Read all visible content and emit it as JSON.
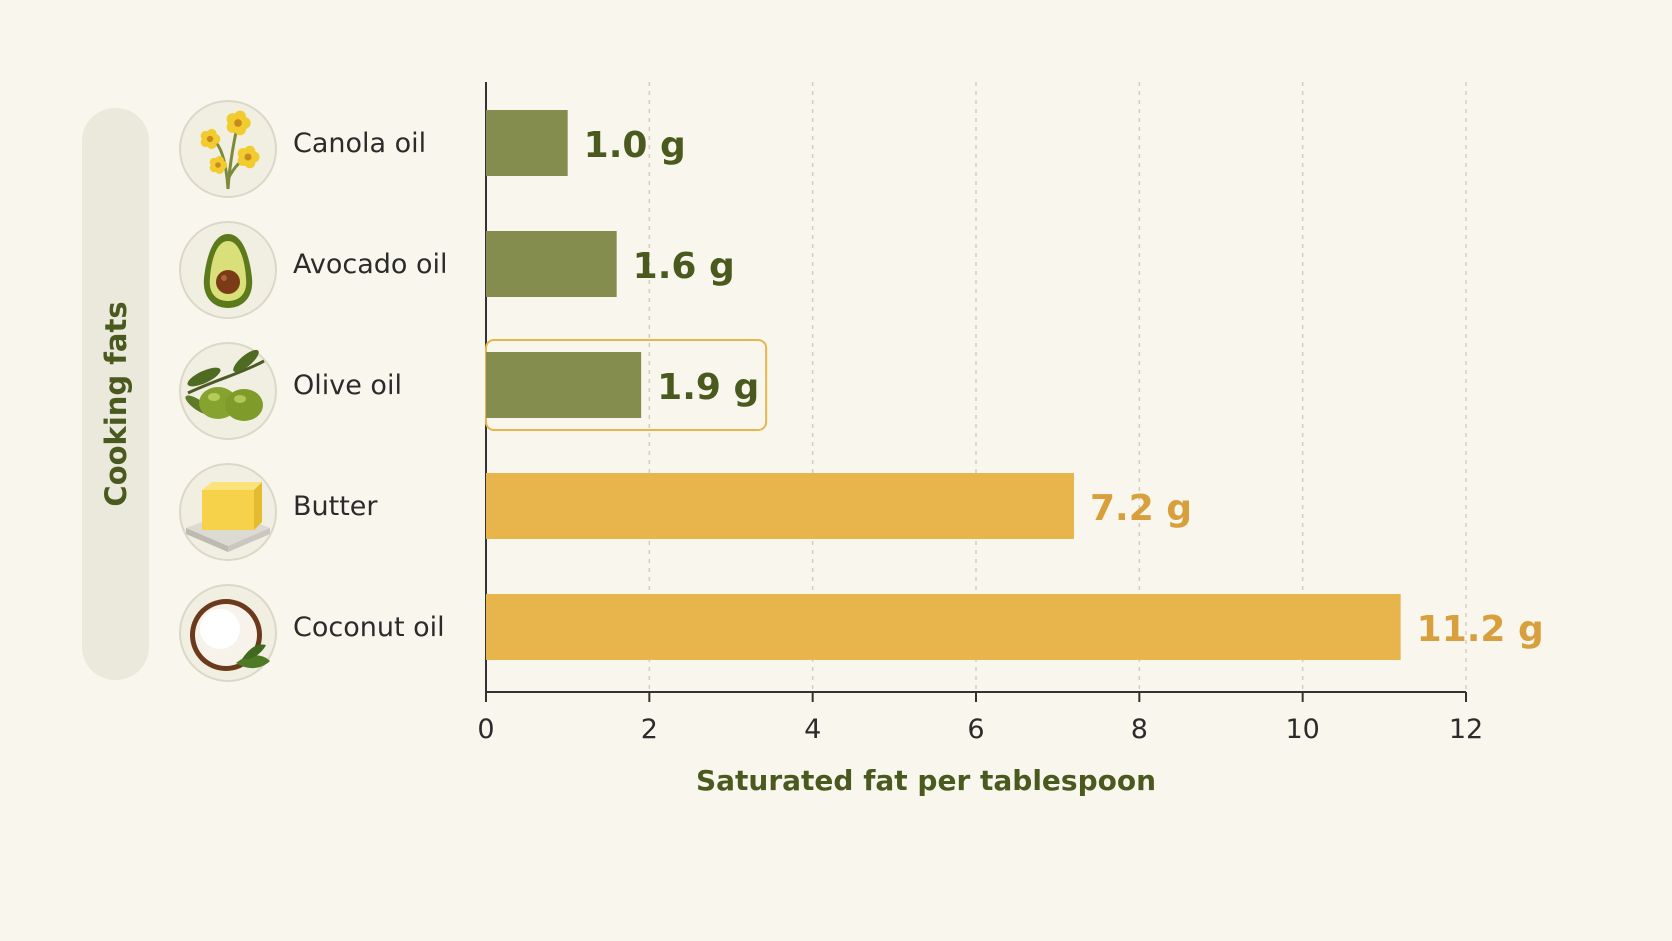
{
  "chart_data": {
    "type": "bar",
    "orientation": "horizontal",
    "ylabel": "Cooking fats",
    "xlabel": "Saturated fat per tablespoon",
    "xlim": [
      0,
      12
    ],
    "xticks": [
      0,
      2,
      4,
      6,
      8,
      10,
      12
    ],
    "grid": "vertical-dashed",
    "categories": [
      "Canola oil",
      "Avocado oil",
      "Olive oil",
      "Butter",
      "Coconut oil"
    ],
    "values": [
      1.0,
      1.6,
      1.9,
      7.2,
      11.2
    ],
    "value_labels": [
      "1.0 g",
      "1.6 g",
      "1.9 g",
      "7.2 g",
      "11.2 g"
    ],
    "bar_colors": [
      "#848c4e",
      "#848c4e",
      "#848c4e",
      "#e8b54c",
      "#e8b54c"
    ],
    "label_colors": [
      "#4a5a1f",
      "#4a5a1f",
      "#4a5a1f",
      "#d7a03c",
      "#d7a03c"
    ],
    "icons": [
      "canola-flower-icon",
      "avocado-icon",
      "olive-branch-icon",
      "butter-icon",
      "coconut-icon"
    ],
    "highlighted_category": "Olive oil",
    "highlight_color": "#e8b54c"
  }
}
